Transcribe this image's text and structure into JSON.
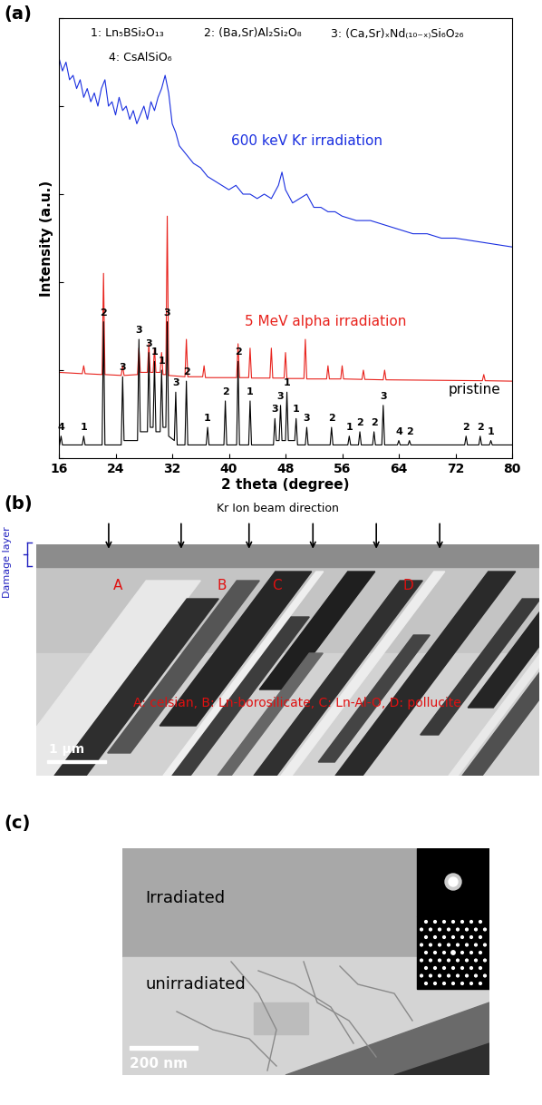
{
  "chart_data": {
    "type": "line",
    "panel_label": "(a)",
    "xlabel": "2 theta (degree)",
    "ylabel": "Intensity (a.u.)",
    "xlim": [
      16,
      80
    ],
    "xticks": [
      16,
      24,
      32,
      40,
      48,
      56,
      64,
      72,
      80
    ],
    "ylim": [
      0,
      100
    ],
    "yticks": [
      0,
      20,
      40,
      60,
      80,
      100
    ],
    "tick_labels": "x",
    "phase_key": [
      "1: Ln₅BSi₂O₁₃",
      "2: (Ba,Sr)Al₂Si₂O₈",
      "3: (Ca,Sr)ₓNd₍₁₀₋ₓ₎Si₆O₂₆",
      "4: CsAlSiO₆"
    ],
    "series": [
      {
        "name": "600 keV Kr irradiation",
        "color": "#1a2fe0",
        "x": [
          16,
          16.5,
          17,
          17.5,
          18,
          18.5,
          19,
          19.5,
          20,
          20.5,
          21,
          21.5,
          22,
          22.5,
          23,
          23.5,
          24,
          24.5,
          25,
          25.5,
          26,
          26.5,
          27,
          27.5,
          28,
          28.5,
          29,
          29.5,
          30,
          30.5,
          31,
          31.5,
          32,
          32.5,
          33,
          34,
          35,
          36,
          37,
          38,
          39,
          40,
          41,
          42,
          43,
          44,
          45,
          46,
          47,
          47.5,
          48,
          49,
          50,
          51,
          52,
          53,
          54,
          55,
          56,
          58,
          60,
          62,
          64,
          66,
          68,
          70,
          72,
          74,
          76,
          78,
          80
        ],
        "values": [
          91,
          88,
          90,
          86,
          87,
          84,
          86,
          82,
          84,
          81,
          83,
          80,
          84,
          86,
          80,
          81,
          78,
          82,
          79,
          80,
          77,
          79,
          76,
          78,
          80,
          77,
          81,
          79,
          82,
          84,
          87,
          83,
          76,
          74,
          71,
          69,
          67,
          66,
          64,
          63,
          62,
          61,
          62,
          60,
          60,
          59,
          60,
          59,
          62,
          65,
          61,
          58,
          59,
          60,
          57,
          57,
          56,
          56,
          55,
          54,
          54,
          53,
          52,
          51,
          51,
          50,
          50,
          49.5,
          49,
          48.5,
          48
        ]
      },
      {
        "name": "5 MeV alpha irradiation",
        "color": "#e8221c",
        "x": [
          16,
          19.3,
          19.5,
          19.7,
          22.1,
          22.3,
          22.5,
          24.8,
          25.0,
          25.2,
          27.1,
          27.3,
          27.5,
          28.5,
          28.7,
          28.9,
          29.3,
          29.5,
          29.7,
          30.3,
          30.5,
          30.7,
          31.1,
          31.3,
          31.5,
          33.8,
          34.0,
          34.2,
          36.3,
          36.5,
          36.7,
          41.1,
          41.3,
          41.5,
          42.8,
          43.0,
          43.2,
          45.8,
          46.0,
          46.2,
          47.8,
          48.0,
          48.2,
          50.6,
          50.8,
          51.0,
          53.8,
          54.0,
          54.2,
          55.8,
          56.0,
          56.2,
          58.8,
          59.0,
          59.2,
          61.8,
          62.0,
          62.2,
          75.8,
          76.0,
          76.2,
          80
        ],
        "values": [
          19.5,
          19.2,
          21,
          19.2,
          19,
          42,
          19,
          18.8,
          21,
          18.8,
          19,
          25,
          19.5,
          19.5,
          26,
          19.5,
          19.5,
          25,
          19.5,
          19.5,
          24,
          19,
          19,
          55,
          18.8,
          18.5,
          27,
          18.5,
          18.5,
          21,
          18.3,
          18.3,
          26,
          18.3,
          18.3,
          25,
          18.2,
          18.2,
          25,
          18.2,
          18.2,
          24,
          18.1,
          18.1,
          27,
          18,
          18,
          21,
          18,
          18,
          21,
          18,
          17.9,
          20,
          17.9,
          17.8,
          20,
          17.8,
          17.6,
          19,
          17.6,
          17.5
        ]
      },
      {
        "name": "pristine",
        "color": "#000000",
        "x": [
          16,
          16.1,
          16.3,
          16.5,
          19.3,
          19.5,
          19.7,
          22.1,
          22.3,
          22.5,
          24.8,
          25.0,
          25.2,
          27.1,
          27.3,
          27.5,
          28.5,
          28.7,
          28.9,
          29.3,
          29.5,
          29.7,
          30.3,
          30.5,
          30.7,
          31.1,
          31.3,
          31.5,
          32.3,
          32.5,
          32.7,
          33.8,
          34.0,
          34.2,
          36.8,
          37.0,
          37.2,
          39.3,
          39.5,
          39.7,
          41.1,
          41.3,
          41.5,
          42.8,
          43.0,
          43.2,
          46.3,
          46.5,
          46.7,
          47.1,
          47.3,
          47.5,
          48.0,
          48.2,
          48.4,
          49.3,
          49.5,
          49.7,
          50.8,
          51.0,
          51.2,
          54.3,
          54.5,
          54.7,
          56.8,
          57.0,
          57.2,
          58.3,
          58.5,
          58.7,
          60.3,
          60.5,
          60.7,
          61.6,
          61.8,
          62.0,
          63.8,
          64.0,
          64.2,
          65.3,
          65.5,
          65.7,
          73.3,
          73.5,
          73.7,
          75.3,
          75.5,
          75.7,
          76.8,
          77.0,
          77.2,
          80
        ],
        "values": [
          3,
          3,
          5,
          3,
          3,
          5,
          3,
          3,
          31,
          3,
          3,
          18.5,
          4,
          4,
          27,
          6,
          6,
          24,
          7,
          7,
          22,
          6,
          6,
          20,
          7,
          7,
          31,
          5,
          4,
          15,
          3,
          3,
          17.5,
          3,
          3,
          7,
          3,
          3,
          13,
          3,
          3,
          22,
          3,
          3,
          13,
          3,
          3,
          9,
          4,
          4,
          12,
          4,
          4,
          15,
          4,
          4,
          9,
          3,
          3,
          7,
          3,
          3,
          7,
          3,
          3,
          5,
          3,
          3,
          6,
          3,
          3,
          6,
          3,
          3,
          12,
          3,
          3,
          4,
          3,
          3,
          4,
          3,
          3,
          5,
          3,
          3,
          5,
          3,
          3,
          4,
          3,
          3
        ],
        "peak_labels": [
          {
            "x": 16.3,
            "label": "4"
          },
          {
            "x": 19.5,
            "label": "1"
          },
          {
            "x": 22.3,
            "label": "2"
          },
          {
            "x": 25.0,
            "label": "3"
          },
          {
            "x": 27.3,
            "label": "3"
          },
          {
            "x": 28.7,
            "label": "3"
          },
          {
            "x": 29.5,
            "label": "1"
          },
          {
            "x": 30.5,
            "label": "1"
          },
          {
            "x": 31.3,
            "label": "3"
          },
          {
            "x": 32.5,
            "label": "3"
          },
          {
            "x": 34.0,
            "label": "2"
          },
          {
            "x": 37.0,
            "label": "1"
          },
          {
            "x": 39.5,
            "label": "2"
          },
          {
            "x": 41.3,
            "label": "2"
          },
          {
            "x": 43.0,
            "label": "1"
          },
          {
            "x": 46.5,
            "label": "3"
          },
          {
            "x": 47.3,
            "label": "3"
          },
          {
            "x": 48.2,
            "label": "1"
          },
          {
            "x": 49.5,
            "label": "1"
          },
          {
            "x": 51.0,
            "label": "3"
          },
          {
            "x": 54.5,
            "label": "2"
          },
          {
            "x": 57.0,
            "label": "1"
          },
          {
            "x": 58.5,
            "label": "2"
          },
          {
            "x": 60.5,
            "label": "2"
          },
          {
            "x": 61.8,
            "label": "3"
          },
          {
            "x": 64.0,
            "label": "4"
          },
          {
            "x": 65.5,
            "label": "2"
          },
          {
            "x": 73.5,
            "label": "2"
          },
          {
            "x": 75.5,
            "label": "2"
          },
          {
            "x": 77.0,
            "label": "1"
          }
        ]
      }
    ]
  },
  "panel_b": {
    "label": "(b)",
    "beam_label": "Kr Ion beam direction",
    "damage_label": "Damage layer",
    "phase_letters": [
      "A",
      "B",
      "C",
      "D"
    ],
    "key": "A: celsian, B: Ln-borosilicate, C: Ln-Al-O, D: pollucite",
    "scale_bar": "1 μm"
  },
  "panel_c": {
    "label": "(c)",
    "top_region": "Irradiated",
    "bottom_region": "unirradiated",
    "scale_bar": "200 nm"
  }
}
